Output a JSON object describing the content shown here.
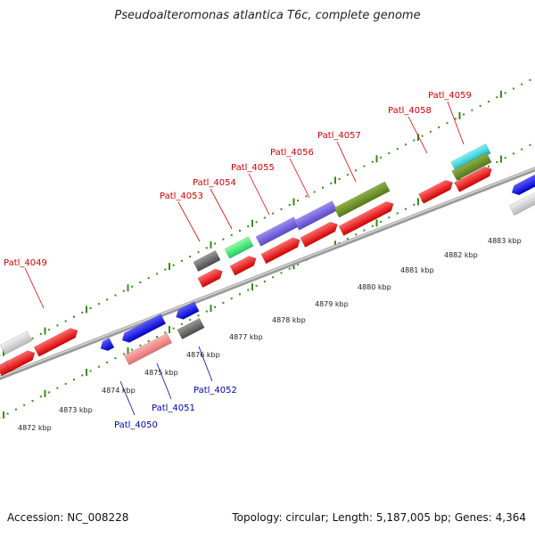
{
  "title": "Pseudoalteromonas atlantica T6c, complete genome",
  "footer": {
    "accession": "Accession: NC_008228",
    "summary": "Topology: circular; Length: 5,187,005 bp; Genes: 4,364"
  },
  "colors": {
    "forward_label": "#cc0000",
    "reverse_label": "#0000aa",
    "backbone": "#888888",
    "ticks": "#3a8a1a"
  },
  "kbp_labels": [
    "4872 kbp",
    "4873 kbp",
    "4874 kbp",
    "4875 kbp",
    "4876 kbp",
    "4877 kbp",
    "4878 kbp",
    "4879 kbp",
    "4880 kbp",
    "4881 kbp",
    "4882 kbp",
    "4883 kbp"
  ],
  "gene_labels": [
    {
      "text": "Patl_4049",
      "strand": "forward"
    },
    {
      "text": "Patl_4053",
      "strand": "forward"
    },
    {
      "text": "Patl_4054",
      "strand": "forward"
    },
    {
      "text": "Patl_4055",
      "strand": "forward"
    },
    {
      "text": "Patl_4056",
      "strand": "forward"
    },
    {
      "text": "Patl_4057",
      "strand": "forward"
    },
    {
      "text": "Patl_4058",
      "strand": "forward"
    },
    {
      "text": "Patl_4059",
      "strand": "forward"
    },
    {
      "text": "Patl_4050",
      "strand": "reverse"
    },
    {
      "text": "Patl_4051",
      "strand": "reverse"
    },
    {
      "text": "Patl_4052",
      "strand": "reverse"
    }
  ]
}
